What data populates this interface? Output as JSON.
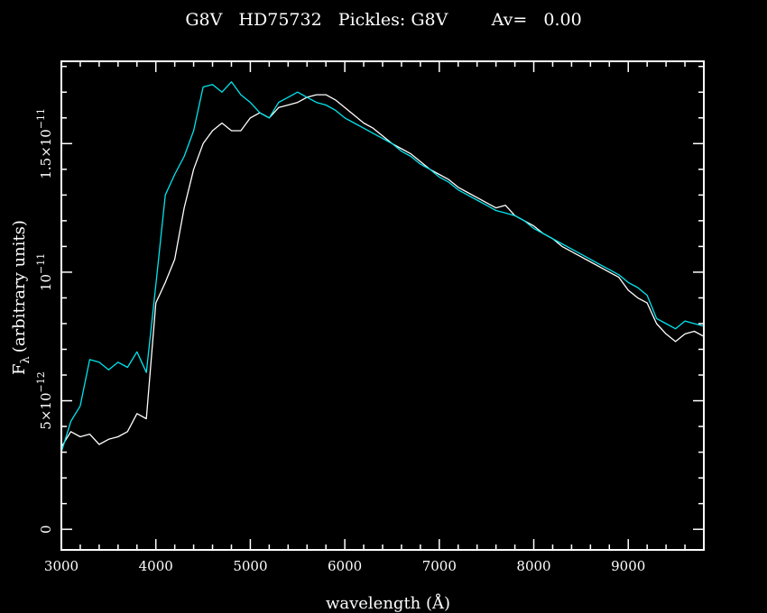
{
  "header": {
    "title": "G8V   HD75732   Pickles: G8V        Av=   0.00"
  },
  "chart_data": {
    "type": "line",
    "title": "G8V   HD75732   Pickles: G8V        Av=   0.00",
    "xlabel": "wavelength (Å)",
    "ylabel": "(arbitrary units)",
    "ylabel_symbol": "F",
    "ylabel_subscript": "λ",
    "xlim": [
      3000,
      9800
    ],
    "ylim": [
      -8e-13,
      1.82e-11
    ],
    "x_ticks": [
      {
        "value": 3000,
        "label": "3000"
      },
      {
        "value": 4000,
        "label": "4000"
      },
      {
        "value": 5000,
        "label": "5000"
      },
      {
        "value": 6000,
        "label": "6000"
      },
      {
        "value": 7000,
        "label": "7000"
      },
      {
        "value": 8000,
        "label": "8000"
      },
      {
        "value": 9000,
        "label": "9000"
      }
    ],
    "y_ticks": [
      {
        "value": 0,
        "mantissa": "0",
        "exponent": ""
      },
      {
        "value": 5e-12,
        "mantissa": "5×10",
        "exponent": "−12"
      },
      {
        "value": 1e-11,
        "mantissa": "10",
        "exponent": "−11"
      },
      {
        "value": 1.5e-11,
        "mantissa": "1.5×10",
        "exponent": "−11"
      }
    ],
    "grid": false,
    "colors": {
      "background": "#000000",
      "axes": "#ffffff",
      "observed": "#ffffff",
      "template": "#00e5ee"
    },
    "series": [
      {
        "color": "#ffffff",
        "x": [
          3000,
          3100,
          3200,
          3300,
          3400,
          3500,
          3600,
          3700,
          3800,
          3900,
          4000,
          4100,
          4200,
          4300,
          4400,
          4500,
          4600,
          4700,
          4800,
          4900,
          5000,
          5100,
          5200,
          5300,
          5400,
          5500,
          5600,
          5700,
          5800,
          5900,
          6000,
          6100,
          6200,
          6300,
          6400,
          6500,
          6600,
          6700,
          6800,
          6900,
          7000,
          7100,
          7200,
          7300,
          7400,
          7500,
          7600,
          7700,
          7800,
          7900,
          8000,
          8100,
          8200,
          8300,
          8400,
          8500,
          8600,
          8700,
          8800,
          8900,
          9000,
          9100,
          9200,
          9300,
          9400,
          9500,
          9600,
          9700,
          9800
        ],
        "y": [
          3.2e-12,
          3.8e-12,
          3.6e-12,
          3.7e-12,
          3.3e-12,
          3.5e-12,
          3.6e-12,
          3.8e-12,
          4.5e-12,
          4.3e-12,
          8.8e-12,
          9.6e-12,
          1.05e-11,
          1.25e-11,
          1.4e-11,
          1.5e-11,
          1.55e-11,
          1.58e-11,
          1.55e-11,
          1.55e-11,
          1.6e-11,
          1.62e-11,
          1.6e-11,
          1.64e-11,
          1.65e-11,
          1.66e-11,
          1.68e-11,
          1.69e-11,
          1.69e-11,
          1.67e-11,
          1.64e-11,
          1.61e-11,
          1.58e-11,
          1.56e-11,
          1.53e-11,
          1.5e-11,
          1.48e-11,
          1.46e-11,
          1.43e-11,
          1.4e-11,
          1.38e-11,
          1.36e-11,
          1.33e-11,
          1.31e-11,
          1.29e-11,
          1.27e-11,
          1.25e-11,
          1.26e-11,
          1.22e-11,
          1.2e-11,
          1.18e-11,
          1.15e-11,
          1.13e-11,
          1.1e-11,
          1.08e-11,
          1.06e-11,
          1.04e-11,
          1.02e-11,
          1e-11,
          9.8e-12,
          9.3e-12,
          9e-12,
          8.8e-12,
          8e-12,
          7.6e-12,
          7.3e-12,
          7.6e-12,
          7.7e-12,
          7.5e-12
        ]
      },
      {
        "color": "#00e5ee",
        "x": [
          3000,
          3100,
          3200,
          3300,
          3400,
          3500,
          3600,
          3700,
          3800,
          3900,
          4000,
          4100,
          4200,
          4300,
          4400,
          4500,
          4600,
          4700,
          4800,
          4900,
          5000,
          5100,
          5200,
          5300,
          5400,
          5500,
          5600,
          5700,
          5800,
          5900,
          6000,
          6100,
          6200,
          6300,
          6400,
          6500,
          6600,
          6700,
          6800,
          6900,
          7000,
          7100,
          7200,
          7300,
          7400,
          7500,
          7600,
          7700,
          7800,
          7900,
          8000,
          8100,
          8200,
          8300,
          8400,
          8500,
          8600,
          8700,
          8800,
          8900,
          9000,
          9100,
          9200,
          9300,
          9400,
          9500,
          9600,
          9700,
          9800
        ],
        "y": [
          3e-12,
          4.2e-12,
          4.8e-12,
          6.6e-12,
          6.5e-12,
          6.2e-12,
          6.5e-12,
          6.3e-12,
          6.9e-12,
          6.1e-12,
          9.5e-12,
          1.3e-11,
          1.38e-11,
          1.45e-11,
          1.55e-11,
          1.72e-11,
          1.73e-11,
          1.7e-11,
          1.74e-11,
          1.69e-11,
          1.66e-11,
          1.62e-11,
          1.6e-11,
          1.66e-11,
          1.68e-11,
          1.7e-11,
          1.68e-11,
          1.66e-11,
          1.65e-11,
          1.63e-11,
          1.6e-11,
          1.58e-11,
          1.56e-11,
          1.54e-11,
          1.52e-11,
          1.5e-11,
          1.47e-11,
          1.45e-11,
          1.42e-11,
          1.4e-11,
          1.37e-11,
          1.35e-11,
          1.32e-11,
          1.3e-11,
          1.28e-11,
          1.26e-11,
          1.24e-11,
          1.23e-11,
          1.22e-11,
          1.2e-11,
          1.17e-11,
          1.15e-11,
          1.13e-11,
          1.11e-11,
          1.09e-11,
          1.07e-11,
          1.05e-11,
          1.03e-11,
          1.01e-11,
          9.9e-12,
          9.6e-12,
          9.4e-12,
          9.1e-12,
          8.2e-12,
          8e-12,
          7.8e-12,
          8.1e-12,
          8e-12,
          7.9e-12
        ]
      }
    ]
  }
}
